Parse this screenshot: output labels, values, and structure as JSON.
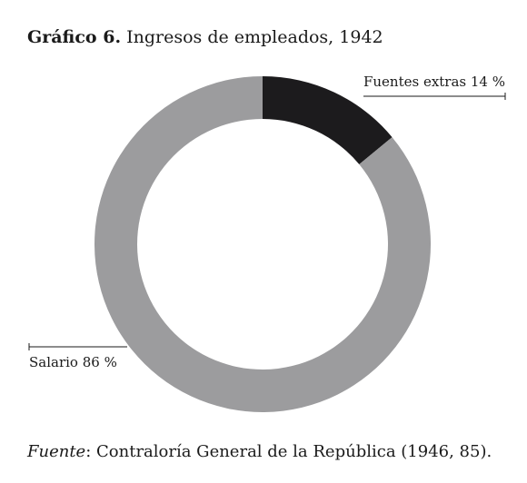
{
  "title": {
    "lead": "Gráfico 6.",
    "text": " Ingresos de empleados, 1942"
  },
  "chart_data": {
    "type": "pie",
    "donut": true,
    "categories": [
      "Fuentes extras",
      "Salario"
    ],
    "values": [
      14,
      86
    ],
    "labels": [
      "Fuentes extras 14 %",
      "Salario 86 %"
    ],
    "colors": [
      "#1c1b1d",
      "#9c9c9e"
    ]
  },
  "source": {
    "lead": "Fuente",
    "text": ": Contraloría General de la República (1946, 85)."
  }
}
